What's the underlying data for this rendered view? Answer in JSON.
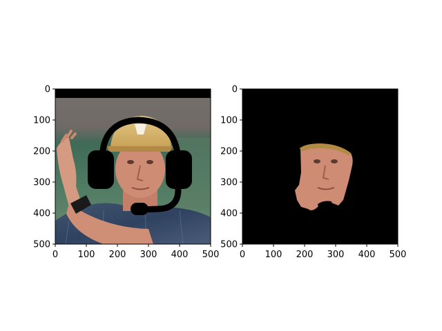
{
  "chart_data": [
    {
      "type": "image",
      "title": "",
      "xlabel": "",
      "ylabel": "",
      "xlim": [
        0,
        500
      ],
      "ylim": [
        500,
        0
      ],
      "xticks": [
        0,
        100,
        200,
        300,
        400,
        500
      ],
      "yticks": [
        0,
        100,
        200,
        300,
        400,
        500
      ],
      "grid": false,
      "content": "photo of man in cap with black headset mask overlay"
    },
    {
      "type": "image",
      "title": "",
      "xlabel": "",
      "ylabel": "",
      "xlim": [
        0,
        500
      ],
      "ylim": [
        500,
        0
      ],
      "xticks": [
        0,
        100,
        200,
        300,
        400,
        500
      ],
      "yticks": [
        0,
        100,
        200,
        300,
        400,
        500
      ],
      "grid": false,
      "content": "segmented face region on black background"
    }
  ],
  "colors": {
    "axes_edge": "#000000",
    "mask": "#000000",
    "background": "#ffffff"
  }
}
